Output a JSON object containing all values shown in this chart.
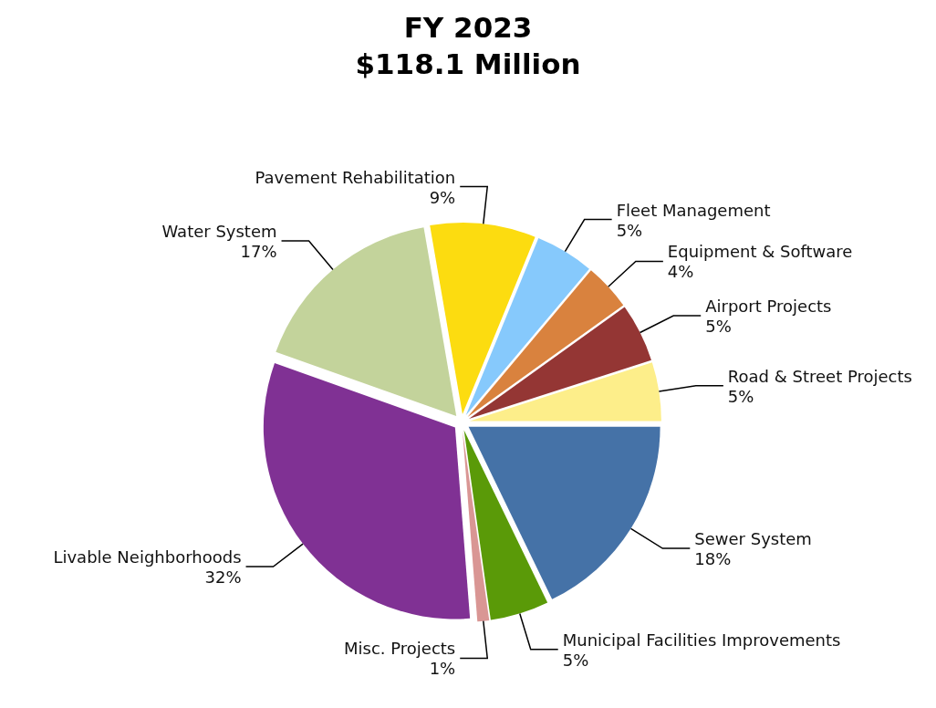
{
  "chart_data": {
    "type": "pie",
    "title": "FY 2023",
    "subtitle": "$118.1 Million",
    "categories": [
      "Sewer System",
      "Municipal Facilities Improvements",
      "Misc. Projects",
      "Livable Neighborhoods",
      "Water System",
      "Pavement Rehabilitation",
      "Fleet Management",
      "Equipment & Software",
      "Airport Projects",
      "Road & Street Projects"
    ],
    "values": [
      18,
      5,
      1,
      32,
      17,
      9,
      5,
      4,
      5,
      5
    ],
    "value_labels": [
      "18%",
      "5%",
      "1%",
      "32%",
      "17%",
      "9%",
      "5%",
      "4%",
      "5%",
      "5%"
    ],
    "colors": [
      "#4572a7",
      "#5a9a08",
      "#d99694",
      "#803194",
      "#c3d39b",
      "#fcdc10",
      "#86c9fc",
      "#d9823e",
      "#943634",
      "#fdee8a"
    ],
    "legend": false
  }
}
